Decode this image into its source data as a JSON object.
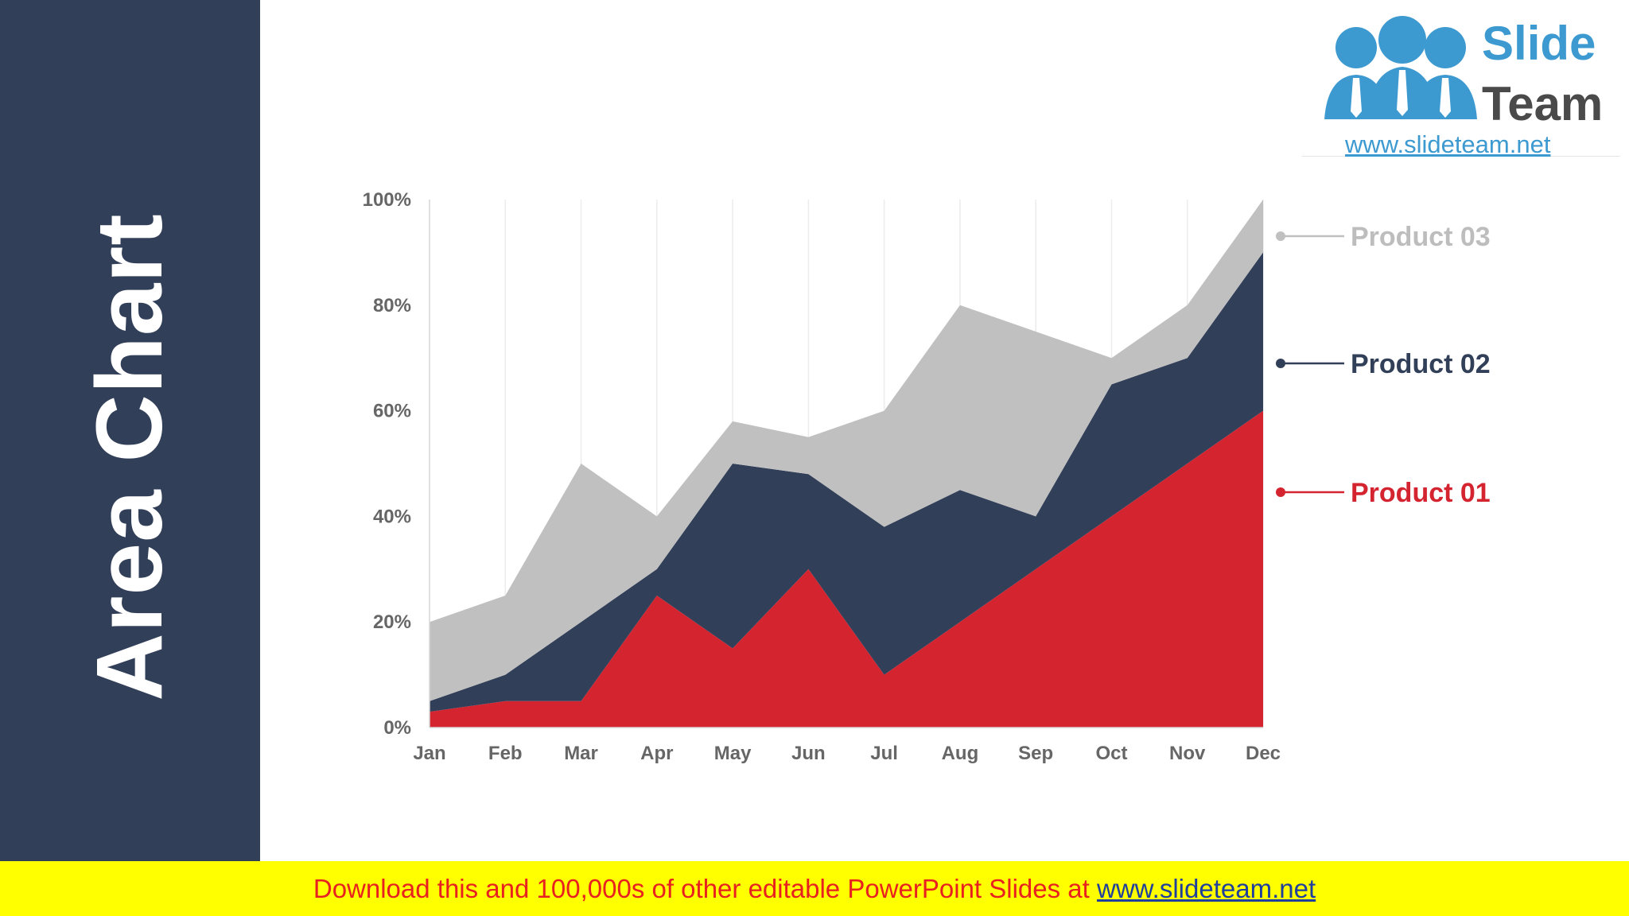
{
  "sidebar": {
    "title": "Area Chart",
    "color": "#323f59"
  },
  "logo": {
    "line1": "Slide",
    "line2": "Team",
    "url": "www.slideteam.net",
    "color": "#3d9ad1"
  },
  "footer": {
    "text": "Download this and 100,000s of other editable PowerPoint Slides at",
    "link": "www.slideteam.net"
  },
  "chart_data": {
    "type": "area",
    "stacked": true,
    "categories": [
      "Jan",
      "Feb",
      "Mar",
      "Apr",
      "May",
      "Jun",
      "Jul",
      "Aug",
      "Sep",
      "Oct",
      "Nov",
      "Dec"
    ],
    "y_ticks": [
      "0%",
      "20%",
      "40%",
      "60%",
      "80%",
      "100%"
    ],
    "ylim": [
      0,
      100
    ],
    "grid": "vertical",
    "legend_position": "right",
    "series": [
      {
        "name": "Product 01",
        "color": "#d42430",
        "values": [
          3,
          5,
          5,
          25,
          15,
          30,
          10,
          20,
          30,
          40,
          50,
          60
        ]
      },
      {
        "name": "Product 02",
        "color": "#323f59",
        "values": [
          2,
          5,
          15,
          5,
          35,
          18,
          28,
          25,
          10,
          25,
          20,
          30
        ]
      },
      {
        "name": "Product 03",
        "color": "#c0c0c0",
        "values": [
          15,
          15,
          30,
          10,
          8,
          7,
          22,
          35,
          35,
          5,
          10,
          10
        ]
      }
    ]
  }
}
